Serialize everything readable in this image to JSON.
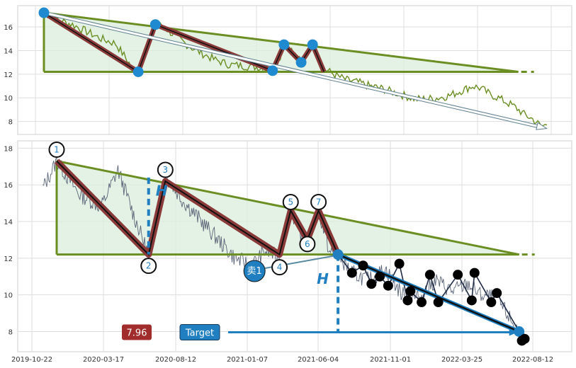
{
  "chart_data": [
    {
      "type": "line",
      "title": "",
      "xlabel": "",
      "ylabel": "",
      "ylim": [
        6.9,
        17.8
      ],
      "yticks": [
        8,
        10,
        12,
        14,
        16
      ],
      "grid": true,
      "series": [
        {
          "values_note": "price",
          "points": [
            [
              0,
              17.2
            ],
            [
              5,
              16.6
            ],
            [
              10,
              16.2
            ],
            [
              15,
              15.6
            ],
            [
              20,
              15.0
            ],
            [
              25,
              14.6
            ],
            [
              28,
              13.6
            ],
            [
              31,
              12.5
            ],
            [
              33,
              12.2
            ],
            [
              35,
              13.5
            ],
            [
              37,
              15.0
            ],
            [
              39,
              16.2
            ],
            [
              42,
              16.0
            ],
            [
              46,
              15.2
            ],
            [
              50,
              14.5
            ],
            [
              55,
              13.8
            ],
            [
              60,
              13.2
            ],
            [
              65,
              12.8
            ],
            [
              70,
              12.7
            ],
            [
              75,
              12.6
            ],
            [
              80,
              12.3
            ],
            [
              82,
              13.0
            ],
            [
              84,
              14.5
            ],
            [
              86,
              14.2
            ],
            [
              88,
              13.6
            ],
            [
              90,
              13.0
            ],
            [
              92,
              14.0
            ],
            [
              94,
              14.5
            ],
            [
              96,
              13.2
            ],
            [
              98,
              12.4
            ],
            [
              100,
              12.2
            ],
            [
              103,
              11.8
            ],
            [
              106,
              11.5
            ],
            [
              110,
              11.3
            ],
            [
              114,
              11.0
            ],
            [
              118,
              10.8
            ],
            [
              122,
              10.5
            ],
            [
              126,
              10.2
            ],
            [
              130,
              9.9
            ],
            [
              134,
              9.9
            ],
            [
              138,
              10.0
            ],
            [
              142,
              10.2
            ],
            [
              146,
              10.6
            ],
            [
              150,
              11.0
            ],
            [
              153,
              10.8
            ],
            [
              156,
              10.3
            ],
            [
              159,
              10.0
            ],
            [
              162,
              9.6
            ],
            [
              165,
              9.2
            ],
            [
              168,
              8.6
            ],
            [
              171,
              8.2
            ],
            [
              174,
              7.6
            ],
            [
              176,
              7.7
            ]
          ]
        }
      ],
      "pattern": {
        "peaks": [
          [
            0,
            17.2
          ],
          [
            39,
            16.2
          ],
          [
            84,
            14.5
          ],
          [
            94,
            14.5
          ]
        ],
        "troughs": [
          [
            33,
            12.2
          ],
          [
            80,
            12.3
          ],
          [
            90,
            13.0
          ],
          [
            98,
            12.2
          ]
        ],
        "resistance": [
          [
            0,
            17.2
          ],
          [
            166,
            12.2
          ]
        ],
        "support_level": 12.2,
        "projection": [
          [
            0,
            17.2
          ],
          [
            176,
            7.6
          ]
        ]
      }
    },
    {
      "type": "line",
      "title": "",
      "xlabel": "",
      "ylabel": "",
      "ylim": [
        6.9,
        18.4
      ],
      "yticks": [
        8,
        10,
        12,
        14,
        16,
        18
      ],
      "x_tick_labels": [
        "2019-10-22",
        "2020-03-17",
        "2020-08-12",
        "2021-01-07",
        "2021-06-04",
        "2021-11-01",
        "2022-03-25",
        "2022-08-12"
      ],
      "grid": true,
      "wave_points": [
        {
          "label": "1",
          "x": 0,
          "y": 17.3
        },
        {
          "label": "2",
          "x": 33,
          "y": 12.2
        },
        {
          "label": "3",
          "x": 39,
          "y": 16.2
        },
        {
          "label": "4",
          "x": 80,
          "y": 12.2
        },
        {
          "label": "5",
          "x": 84,
          "y": 14.6
        },
        {
          "label": "6",
          "x": 90,
          "y": 13.0
        },
        {
          "label": "7",
          "x": 94,
          "y": 14.6
        }
      ],
      "resistance": [
        [
          0,
          17.3
        ],
        [
          166,
          12.2
        ]
      ],
      "support_level": 12.2,
      "breakout": {
        "x": 101,
        "y": 12.2,
        "label": "卖1"
      },
      "height_label": "H",
      "target": {
        "value": "7.96",
        "label": "Target",
        "y": 7.96
      },
      "zigzag": [
        [
          101,
          12.2
        ],
        [
          106,
          11.2
        ],
        [
          110,
          11.6
        ],
        [
          113,
          10.6
        ],
        [
          116,
          11.0
        ],
        [
          119,
          10.5
        ],
        [
          123,
          11.7
        ],
        [
          126,
          9.7
        ],
        [
          127,
          10.2
        ],
        [
          131,
          9.6
        ],
        [
          134,
          11.1
        ],
        [
          137,
          9.6
        ],
        [
          144,
          11.1
        ],
        [
          149,
          9.7
        ],
        [
          150,
          11.2
        ],
        [
          156,
          9.6
        ],
        [
          158,
          10.1
        ],
        [
          166,
          8.0
        ],
        [
          167,
          7.5
        ],
        [
          168,
          7.6
        ]
      ],
      "trend_to_target": [
        [
          101,
          12.2
        ],
        [
          166,
          8.0
        ]
      ],
      "colors": {
        "pattern_line": "#6b8e23",
        "fill": "#d9eedb",
        "wave": "#8b3a3a",
        "accent": "#1f7fc0",
        "target_box": "#a02c2c"
      }
    }
  ]
}
